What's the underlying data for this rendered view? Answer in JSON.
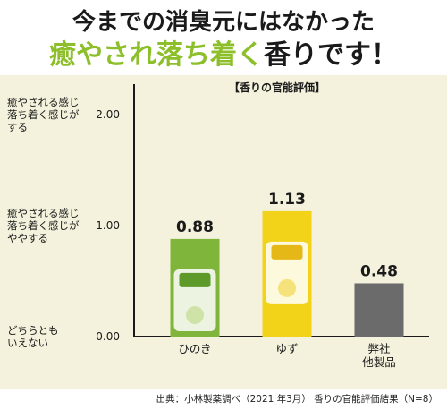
{
  "headline": {
    "line1": "今までの消臭元にはなかった",
    "line2_accent1": "癒やされ",
    "line2_accent2": "落ち着く",
    "line2_rest": "香りです！"
  },
  "chart_data": {
    "type": "bar",
    "title": "【香りの官能評価】",
    "categories": [
      "ひのき",
      "ゆず",
      "弊社\n他製品"
    ],
    "values": [
      0.88,
      1.13,
      0.48
    ],
    "value_labels": [
      "0.88",
      "1.13",
      "0.48"
    ],
    "ylim": [
      0,
      2
    ],
    "yticks": [
      {
        "value": 0,
        "label": "0.00",
        "desc": [
          "どちらとも",
          "いえない"
        ]
      },
      {
        "value": 1,
        "label": "1.00",
        "desc": [
          "癒やされる感じ",
          "落ち着く感じが",
          "ややする"
        ]
      },
      {
        "value": 2,
        "label": "2.00",
        "desc": [
          "癒やされる感じ",
          "落ち着く感じが",
          "する"
        ]
      }
    ],
    "bar_colors": [
      "#7fb53a",
      "#f2d31a",
      "#6b6b6b"
    ],
    "grid": false
  },
  "source_note": "出典：小林製薬調べ（2021 年3月） 香りの官能評価結果（N=8）"
}
